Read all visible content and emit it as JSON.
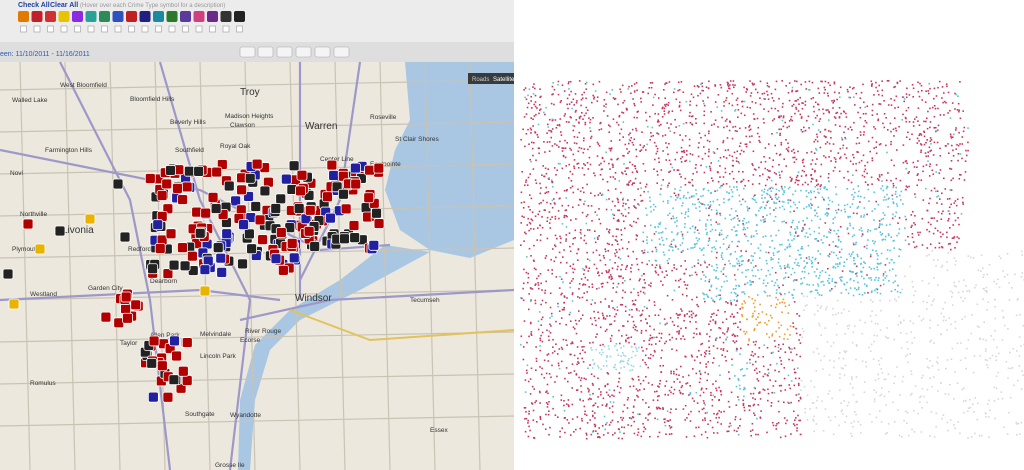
{
  "toolbar": {
    "check_all": "Check All",
    "clear_all": "Clear All",
    "hint": "(Hover over each Crime Type symbol for a description)",
    "date_range": "een: 11/10/2011 - 11/16/2011"
  },
  "map_controls": {
    "roads": "Roads",
    "satellite": "Satellite"
  },
  "place_labels": [
    "West Bloomfield",
    "Walled Lake",
    "Bloomfield Hills",
    "Troy",
    "Beverly Hills",
    "Clawson",
    "Madison Heights",
    "Warren",
    "Roseville",
    "St Clair Shores",
    "Farmington Hills",
    "Southfield",
    "Royal Oak",
    "Center Line",
    "Eastpointe",
    "Novi",
    "Livonia",
    "Redford",
    "Northville",
    "Plymouth",
    "Westland",
    "Garden City",
    "Dearborn",
    "Windsor",
    "Tecumseh",
    "Melvindale",
    "Allen Park",
    "Ecorse",
    "River Rouge",
    "Taylor",
    "Lincoln Park",
    "Romulus",
    "Southgate",
    "Wyandotte",
    "Essex",
    "Grosse Ile"
  ]
}
